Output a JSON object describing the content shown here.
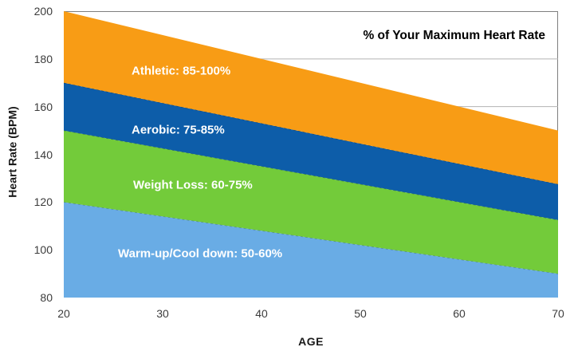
{
  "chart_data": {
    "type": "area",
    "title": "% of Your Maximum Heart Rate",
    "xlabel": "AGE",
    "ylabel": "Heart Rate (BPM)",
    "x": [
      20,
      70
    ],
    "xlim": [
      20,
      70
    ],
    "ylim": [
      80,
      200
    ],
    "x_ticks": [
      20,
      30,
      40,
      50,
      60,
      70
    ],
    "y_ticks": [
      80,
      100,
      120,
      140,
      160,
      180,
      200
    ],
    "grid": "horizontal",
    "legend_position": "labels inside bands",
    "series": [
      {
        "name": "warm-up-cool-down",
        "label": "Warm-up/Cool down: 50-60%",
        "pct_range": "50-60%",
        "top_values": [
          120,
          90
        ],
        "baseline": "chart floor (80 BPM)",
        "color": "#69ACE5"
      },
      {
        "name": "weight-loss",
        "label": "Weight Loss: 60-75%",
        "pct_range": "60-75%",
        "top_values": [
          150,
          112.5
        ],
        "color": "#73CB3A"
      },
      {
        "name": "aerobic",
        "label": "Aerobic: 75-85%",
        "pct_range": "75-85%",
        "top_values": [
          170,
          127.5
        ],
        "color": "#0D5DA9"
      },
      {
        "name": "athletic",
        "label": "Athletic: 85-100%",
        "pct_range": "85-100%",
        "top_values": [
          200,
          150
        ],
        "color": "#F89C15"
      }
    ],
    "style_colors": {
      "gridline": "#B3B3B3",
      "plot_border": "#7F7F7F",
      "tick_text": "#3C3C3C",
      "band_label_text": "#FFFFFF",
      "annotation_text": "#000000"
    }
  }
}
